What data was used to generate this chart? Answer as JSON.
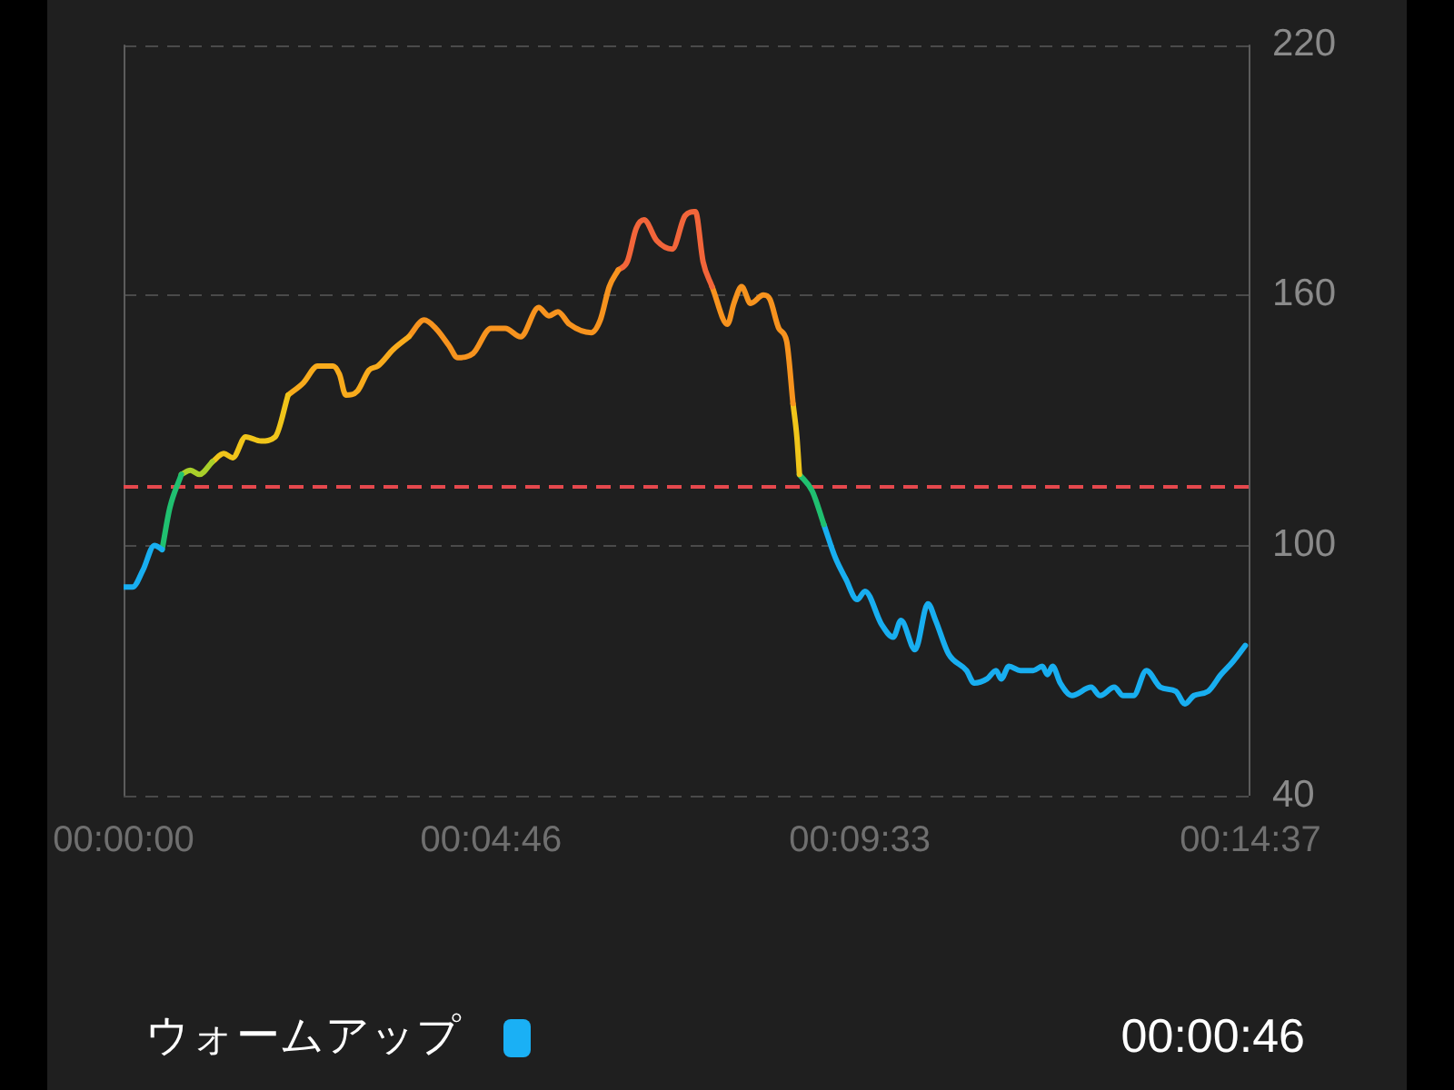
{
  "chart_data": {
    "type": "line",
    "series": [
      {
        "color": "#18aef0",
        "x": [
          0,
          7,
          15,
          24,
          30
        ],
        "values": [
          90,
          90,
          94,
          100,
          99
        ]
      },
      {
        "color": "#20c070",
        "x": [
          30,
          36,
          45
        ],
        "values": [
          99,
          109,
          117
        ]
      },
      {
        "color": "#a8cf2a",
        "x": [
          45,
          52,
          59,
          69
        ],
        "values": [
          117,
          118,
          117,
          120
        ]
      },
      {
        "color": "#f0c51a",
        "x": [
          69,
          78,
          85,
          95,
          107,
          118,
          128
        ],
        "values": [
          120,
          122,
          121,
          126,
          125,
          126,
          136
        ]
      },
      {
        "color": "#f8ab1c",
        "x": [
          128,
          140,
          151,
          163,
          168,
          173,
          182,
          191,
          198,
          210,
          222
        ],
        "values": [
          136,
          139,
          143,
          143,
          141,
          136,
          137,
          142,
          143,
          147,
          150
        ]
      },
      {
        "color": "#f7931e",
        "x": [
          222,
          234,
          243,
          253,
          260,
          272,
          286,
          297,
          309,
          323,
          331,
          338,
          347,
          364,
          371,
          378,
          385
        ],
        "values": [
          150,
          154,
          152,
          148,
          145,
          146,
          152,
          152,
          150,
          157,
          155,
          156,
          153,
          151,
          154,
          162,
          166
        ]
      },
      {
        "color": "#f2653a",
        "x": [
          385,
          392,
          399,
          405,
          415,
          427,
          437,
          445,
          451,
          458
        ],
        "values": [
          166,
          168,
          176,
          178,
          173,
          171,
          179,
          180,
          168,
          162
        ]
      },
      {
        "color": "#f7931e",
        "x": [
          458,
          470,
          475,
          481,
          488,
          498,
          503,
          510,
          516,
          521
        ],
        "values": [
          162,
          153,
          158,
          162,
          158,
          160,
          159,
          152,
          149,
          134
        ]
      },
      {
        "color": "#f0c51a",
        "x": [
          521,
          524,
          526
        ],
        "values": [
          134,
          126,
          117
        ]
      },
      {
        "color": "#20c070",
        "x": [
          526,
          536,
          545
        ],
        "values": [
          117,
          113,
          105
        ]
      },
      {
        "color": "#18aef0",
        "x": [
          545,
          554,
          562,
          571,
          577,
          590,
          599,
          605,
          616,
          626,
          632,
          642,
          656,
          662,
          672,
          679,
          683,
          689,
          698,
          708,
          715,
          719,
          723,
          729,
          738,
          753,
          760,
          771,
          778,
          786,
          796,
          807,
          819,
          826,
          833,
          844,
          854,
          863,
          873
        ],
        "values": [
          105,
          97,
          92,
          87,
          89,
          81,
          78,
          82,
          75,
          86,
          82,
          74,
          70,
          67,
          68,
          70,
          68,
          71,
          70,
          70,
          71,
          69,
          71,
          67,
          64,
          66,
          64,
          66,
          64,
          64,
          70,
          66,
          65,
          62,
          64,
          65,
          69,
          72,
          76
        ]
      }
    ],
    "xlim": [
      0,
      877
    ],
    "xticks": [
      {
        "value": 0,
        "label": "00:00:00"
      },
      {
        "value": 286,
        "label": "00:04:46"
      },
      {
        "value": 573,
        "label": "00:09:33"
      },
      {
        "value": 877,
        "label": "00:14:37"
      }
    ],
    "ylim": [
      40,
      220
    ],
    "yticks": [
      40,
      100,
      160,
      220
    ],
    "grid": "y",
    "ref_lines": [
      {
        "axis": "y",
        "value": 114,
        "color": "#e5484d",
        "line_style": "dashed"
      }
    ],
    "annotations": [
      "ウォームアップ",
      "00:00:46"
    ]
  }
}
